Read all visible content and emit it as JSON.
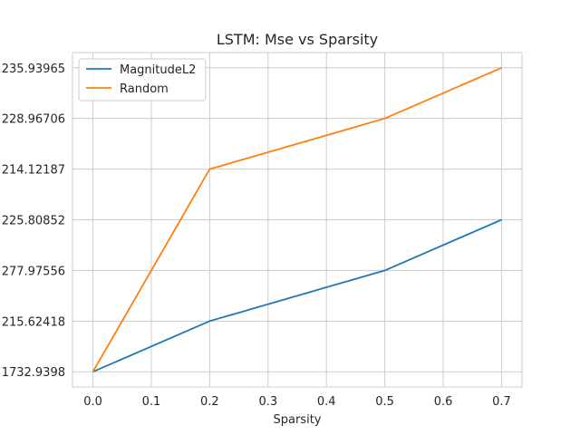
{
  "chart_data": {
    "type": "line",
    "title": "LSTM: Mse vs Sparsity",
    "xlabel": "Sparsity",
    "ylabel": "",
    "xlim": [
      -0.035,
      0.735
    ],
    "ylim": [
      -0.3,
      6.3
    ],
    "x_ticks": [
      "0.0",
      "0.1",
      "0.2",
      "0.3",
      "0.4",
      "0.5",
      "0.6",
      "0.7"
    ],
    "x_tick_values": [
      0.0,
      0.1,
      0.2,
      0.3,
      0.4,
      0.5,
      0.6,
      0.7
    ],
    "y_tick_labels": [
      "1732.9398",
      "215.62418",
      "277.97556",
      "225.80852",
      "214.12187",
      "228.96706",
      "235.93965"
    ],
    "y_tick_values": [
      0,
      1,
      2,
      3,
      4,
      5,
      6
    ],
    "grid": true,
    "legend_position": "top-left",
    "series": [
      {
        "name": "MagnitudeL2",
        "color": "#1f77b4",
        "x": [
          0.0,
          0.2,
          0.5,
          0.7
        ],
        "y": [
          0,
          1,
          2,
          3
        ]
      },
      {
        "name": "Random",
        "color": "#ff7f0e",
        "x": [
          0.0,
          0.2,
          0.5,
          0.7
        ],
        "y": [
          0,
          4,
          5,
          6
        ]
      }
    ]
  }
}
